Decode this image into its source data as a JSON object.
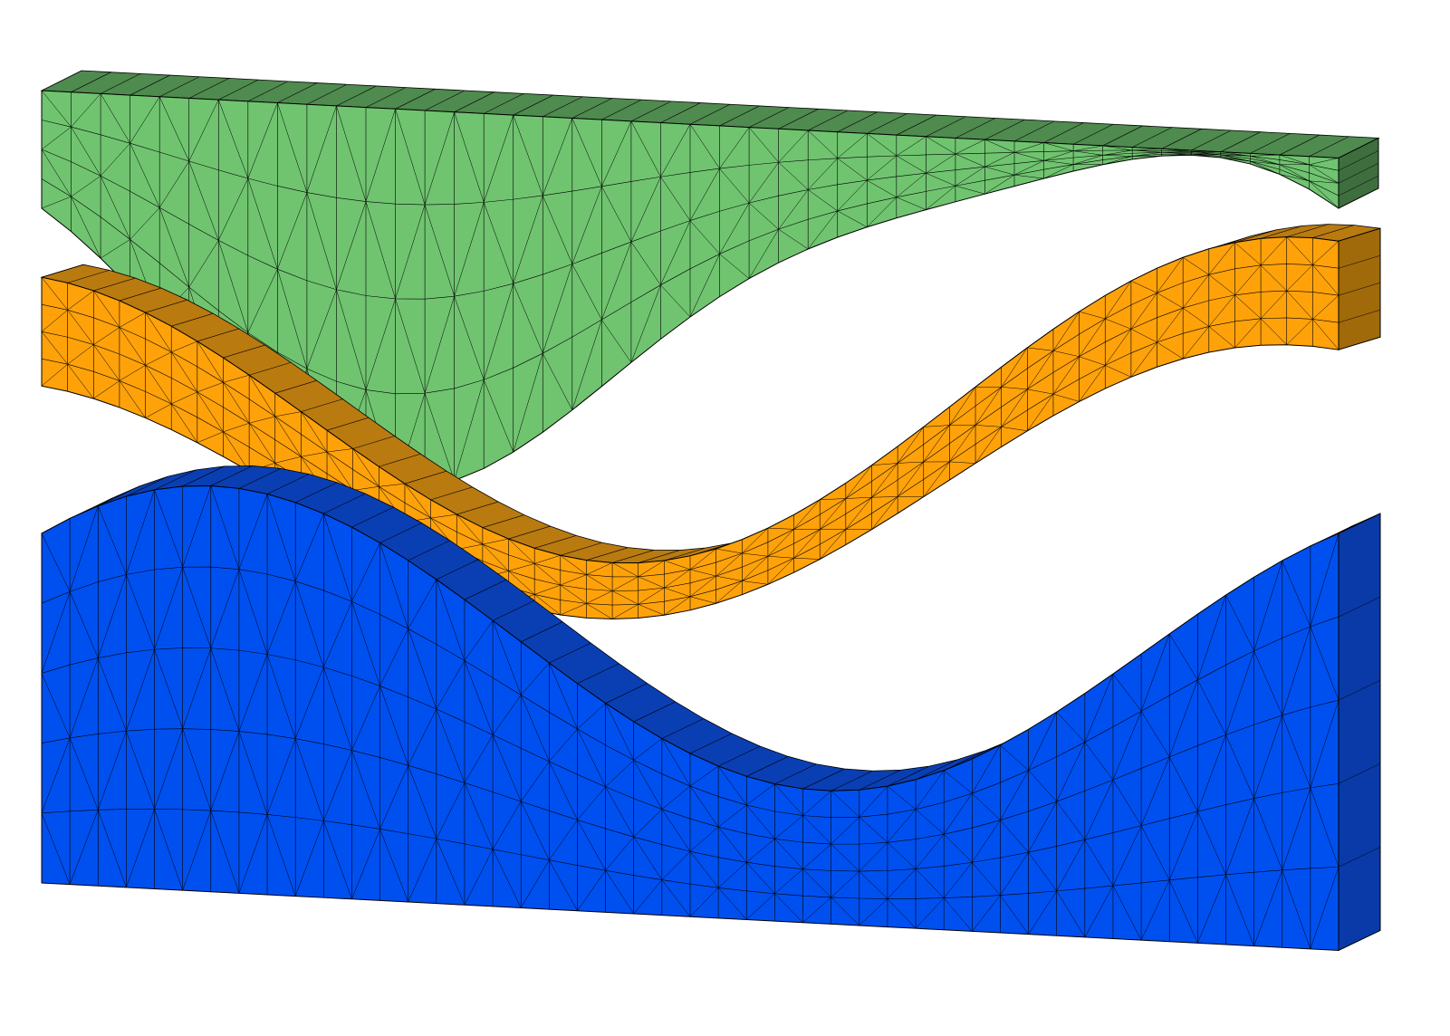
{
  "scene": {
    "background": "#ffffff",
    "mesh_line_color": "#000000",
    "layers": [
      {
        "id": "top",
        "label": "",
        "front_color": "#70c470",
        "top_color": "#4f8a4f",
        "side_color": "#3e6e3e"
      },
      {
        "id": "middle",
        "label": "",
        "front_color": "#ffa20a",
        "top_color": "#b97a10",
        "side_color": "#a06a0a"
      },
      {
        "id": "bottom",
        "label": "",
        "front_color": "#0050f0",
        "top_color": "#0a3fb4",
        "side_color": "#0a3aa8"
      }
    ]
  }
}
